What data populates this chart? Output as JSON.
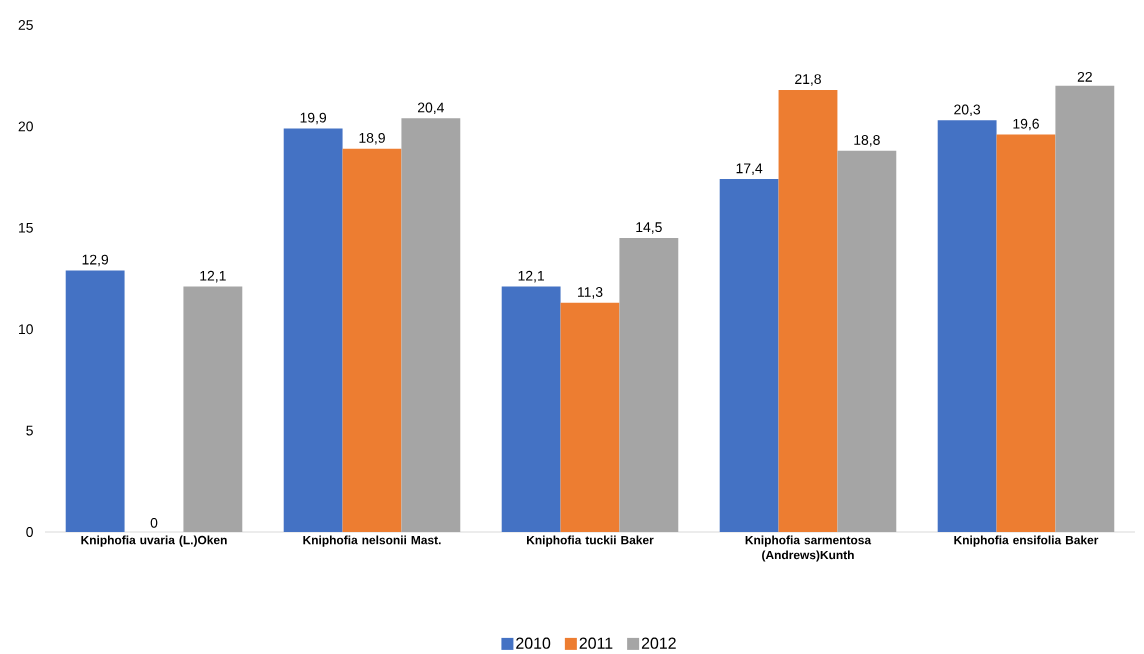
{
  "chart_data": {
    "type": "bar",
    "categories": [
      "Kniphofia uvaria (L.)Oken",
      "Kniphofia nelsonii Mast.",
      "Kniphofia tuckii Baker",
      "Kniphofia sarmentosa (Andrews)Kunth",
      "Kniphofia ensifolia Baker"
    ],
    "series": [
      {
        "name": "2010",
        "color": "#4472c4",
        "values": [
          12.9,
          19.9,
          12.1,
          17.4,
          20.3
        ],
        "value_labels": [
          "12,9",
          "19,9",
          "12,1",
          "17,4",
          "20,3"
        ]
      },
      {
        "name": "2011",
        "color": "#ed7d31",
        "values": [
          0,
          18.9,
          11.3,
          21.8,
          19.6
        ],
        "value_labels": [
          "0",
          "18,9",
          "11,3",
          "21,8",
          "19,6"
        ]
      },
      {
        "name": "2012",
        "color": "#a5a5a5",
        "values": [
          12.1,
          20.4,
          14.5,
          18.8,
          22
        ],
        "value_labels": [
          "12,1",
          "20,4",
          "14,5",
          "18,8",
          "22"
        ]
      }
    ],
    "ylim": [
      0,
      25
    ],
    "yticks": [
      0,
      5,
      10,
      15,
      20,
      25
    ],
    "legend": "bottom"
  }
}
